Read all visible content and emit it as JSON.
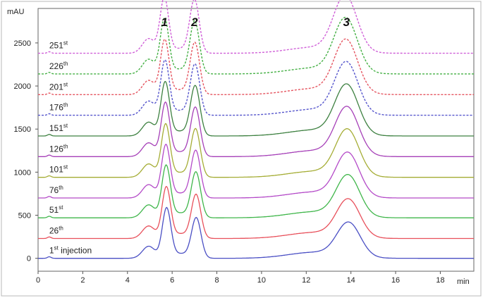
{
  "chart_data": {
    "type": "line",
    "title": "",
    "xlabel": "min",
    "ylabel": "mAU",
    "xlim": [
      0,
      19.5
    ],
    "ylim": [
      -150,
      2900
    ],
    "x_ticks": [
      0,
      2,
      4,
      6,
      8,
      10,
      12,
      14,
      16,
      18
    ],
    "y_ticks": [
      0,
      500,
      1000,
      1500,
      2000,
      2500
    ],
    "grid": false,
    "legend": "none",
    "peak_labels": [
      {
        "label": "1",
        "x": 5.65
      },
      {
        "label": "2",
        "x": 7.0
      },
      {
        "label": "3",
        "x": 13.8
      }
    ],
    "series": [
      {
        "name_main": "1",
        "name_sup": "st",
        "name_rest": " injection",
        "color": "#4a4fc4",
        "dashed": false,
        "baseline": 0,
        "peak_heights": [
          565,
          460,
          390
        ],
        "shoulder": 140
      },
      {
        "name_main": "26",
        "name_sup": "th",
        "name_rest": "",
        "color": "#e8505b",
        "dashed": false,
        "baseline": 230,
        "peak_heights": [
          580,
          500,
          430
        ],
        "shoulder": 145
      },
      {
        "name_main": "51",
        "name_sup": "st",
        "name_rest": "",
        "color": "#3fb64a",
        "dashed": false,
        "baseline": 470,
        "peak_heights": [
          590,
          520,
          470
        ],
        "shoulder": 150
      },
      {
        "name_main": "76",
        "name_sup": "th",
        "name_rest": "",
        "color": "#b44ac8",
        "dashed": false,
        "baseline": 700,
        "peak_heights": [
          600,
          540,
          500
        ],
        "shoulder": 155
      },
      {
        "name_main": "101",
        "name_sup": "st",
        "name_rest": "",
        "color": "#a5ad35",
        "dashed": false,
        "baseline": 940,
        "peak_heights": [
          600,
          550,
          530
        ],
        "shoulder": 155
      },
      {
        "name_main": "126",
        "name_sup": "th",
        "name_rest": "",
        "color": "#a640b8",
        "dashed": false,
        "baseline": 1180,
        "peak_heights": [
          610,
          560,
          550
        ],
        "shoulder": 160
      },
      {
        "name_main": "151",
        "name_sup": "st",
        "name_rest": "",
        "color": "#3d8040",
        "dashed": false,
        "baseline": 1420,
        "peak_heights": [
          610,
          570,
          570
        ],
        "shoulder": 160
      },
      {
        "name_main": "176",
        "name_sup": "th",
        "name_rest": "",
        "color": "#5555cc",
        "dashed": true,
        "baseline": 1660,
        "peak_heights": [
          620,
          580,
          590
        ],
        "shoulder": 165
      },
      {
        "name_main": "201",
        "name_sup": "st",
        "name_rest": "",
        "color": "#e55560",
        "dashed": true,
        "baseline": 1900,
        "peak_heights": [
          620,
          590,
          610
        ],
        "shoulder": 165
      },
      {
        "name_main": "226",
        "name_sup": "th",
        "name_rest": "",
        "color": "#45b045",
        "dashed": true,
        "baseline": 2140,
        "peak_heights": [
          630,
          600,
          620
        ],
        "shoulder": 170
      },
      {
        "name_main": "251",
        "name_sup": "st",
        "name_rest": "",
        "color": "#d060d8",
        "dashed": true,
        "baseline": 2380,
        "peak_heights": [
          630,
          610,
          640
        ],
        "shoulder": 170
      }
    ]
  }
}
